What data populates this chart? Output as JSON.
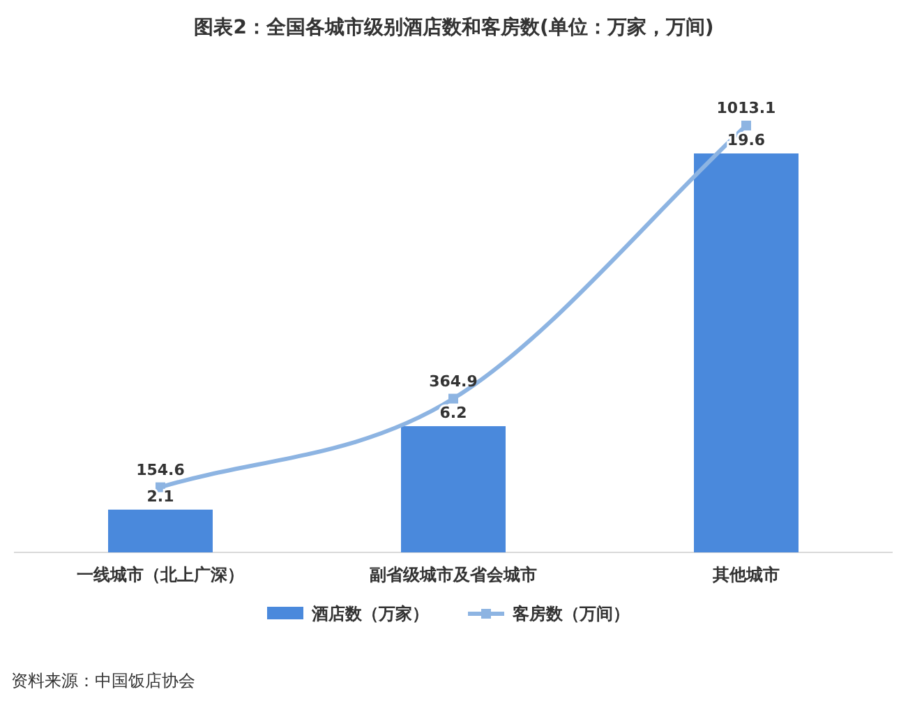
{
  "chart_data": {
    "type": "bar",
    "title": "图表2：全国各城市级别酒店数和客房数(单位：万家，万间)",
    "categories": [
      "一线城市（北上广深）",
      "副省级城市及省会城市",
      "其他城市"
    ],
    "series": [
      {
        "name": "酒店数（万家）",
        "color": "#4a89dc",
        "values": [
          2.1,
          6.2,
          19.6
        ]
      },
      {
        "name": "客房数（万间）",
        "type": "line",
        "axis": "y2",
        "color": "#8db4e2",
        "values": [
          154.6,
          364.9,
          1013.1
        ]
      }
    ],
    "data_labels": true,
    "legend": "bottom",
    "marker": "square",
    "grid": false,
    "tick_labels": "x",
    "annotations": [
      "资料来源：中国饭店协会"
    ]
  }
}
